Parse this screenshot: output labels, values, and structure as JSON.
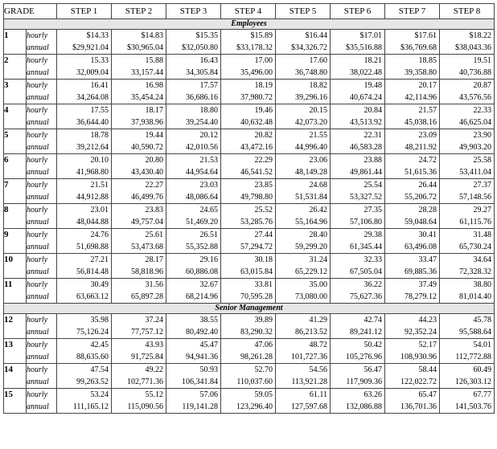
{
  "header": {
    "grade_label": "GRADE",
    "steps": [
      "STEP 1",
      "STEP 2",
      "STEP 3",
      "STEP 4",
      "STEP 5",
      "STEP 6",
      "STEP 7",
      "STEP 8"
    ]
  },
  "row_labels": {
    "hourly": "hourly",
    "annual": "annual"
  },
  "sections": [
    {
      "title": "Employees",
      "grades": [
        {
          "grade": "1",
          "hourly": [
            "$14.33",
            "$14.83",
            "$15.35",
            "$15.89",
            "$16.44",
            "$17.01",
            "$17.61",
            "$18.22"
          ],
          "annual": [
            "$29,921.04",
            "$30,965.04",
            "$32,050.80",
            "$33,178.32",
            "$34,326.72",
            "$35,516.88",
            "$36,769.68",
            "$38,043.36"
          ]
        },
        {
          "grade": "2",
          "hourly": [
            "15.33",
            "15.88",
            "16.43",
            "17.00",
            "17.60",
            "18.21",
            "18.85",
            "19.51"
          ],
          "annual": [
            "32,009.04",
            "33,157.44",
            "34,305.84",
            "35,496.00",
            "36,748.80",
            "38,022.48",
            "39,358.80",
            "40,736.88"
          ]
        },
        {
          "grade": "3",
          "hourly": [
            "16.41",
            "16.98",
            "17.57",
            "18.19",
            "18.82",
            "19.48",
            "20.17",
            "20.87"
          ],
          "annual": [
            "34,264.08",
            "35,454.24",
            "36,686.16",
            "37,980.72",
            "39,296.16",
            "40,674.24",
            "42,114.96",
            "43,576.56"
          ]
        },
        {
          "grade": "4",
          "hourly": [
            "17.55",
            "18.17",
            "18.80",
            "19.46",
            "20.15",
            "20.84",
            "21.57",
            "22.33"
          ],
          "annual": [
            "36,644.40",
            "37,938.96",
            "39,254.40",
            "40,632.48",
            "42,073.20",
            "43,513.92",
            "45,038.16",
            "46,625.04"
          ]
        },
        {
          "grade": "5",
          "hourly": [
            "18.78",
            "19.44",
            "20.12",
            "20.82",
            "21.55",
            "22.31",
            "23.09",
            "23.90"
          ],
          "annual": [
            "39,212.64",
            "40,590.72",
            "42,010.56",
            "43,472.16",
            "44,996.40",
            "46,583.28",
            "48,211.92",
            "49,903.20"
          ]
        },
        {
          "grade": "6",
          "hourly": [
            "20.10",
            "20.80",
            "21.53",
            "22.29",
            "23.06",
            "23.88",
            "24.72",
            "25.58"
          ],
          "annual": [
            "41,968.80",
            "43,430.40",
            "44,954.64",
            "46,541.52",
            "48,149.28",
            "49,861.44",
            "51,615.36",
            "53,411.04"
          ]
        },
        {
          "grade": "7",
          "hourly": [
            "21.51",
            "22.27",
            "23.03",
            "23.85",
            "24.68",
            "25.54",
            "26.44",
            "27.37"
          ],
          "annual": [
            "44,912.88",
            "46,499.76",
            "48,086.64",
            "49,798.80",
            "51,531.84",
            "53,327.52",
            "55,206.72",
            "57,148.56"
          ]
        },
        {
          "grade": "8",
          "hourly": [
            "23.01",
            "23.83",
            "24.65",
            "25.52",
            "26.42",
            "27.35",
            "28.28",
            "29.27"
          ],
          "annual": [
            "48,044.88",
            "49,757.04",
            "51,469.20",
            "53,285.76",
            "55,164.96",
            "57,106.80",
            "59,048.64",
            "61,115.76"
          ]
        },
        {
          "grade": "9",
          "hourly": [
            "24.76",
            "25.61",
            "26.51",
            "27.44",
            "28.40",
            "29.38",
            "30.41",
            "31.48"
          ],
          "annual": [
            "51,698.88",
            "53,473.68",
            "55,352.88",
            "57,294.72",
            "59,299.20",
            "61,345.44",
            "63,496.08",
            "65,730.24"
          ]
        },
        {
          "grade": "10",
          "hourly": [
            "27.21",
            "28.17",
            "29.16",
            "30.18",
            "31.24",
            "32.33",
            "33.47",
            "34.64"
          ],
          "annual": [
            "56,814.48",
            "58,818.96",
            "60,886.08",
            "63,015.84",
            "65,229.12",
            "67,505.04",
            "69,885.36",
            "72,328.32"
          ]
        },
        {
          "grade": "11",
          "hourly": [
            "30.49",
            "31.56",
            "32.67",
            "33.81",
            "35.00",
            "36.22",
            "37.49",
            "38.80"
          ],
          "annual": [
            "63,663.12",
            "65,897.28",
            "68,214.96",
            "70,595.28",
            "73,080.00",
            "75,627.36",
            "78,279.12",
            "81,014.40"
          ]
        }
      ]
    },
    {
      "title": "Senior Management",
      "grades": [
        {
          "grade": "12",
          "hourly": [
            "35.98",
            "37.24",
            "38.55",
            "39.89",
            "41.29",
            "42.74",
            "44.23",
            "45.78"
          ],
          "annual": [
            "75,126.24",
            "77,757.12",
            "80,492.40",
            "83,290.32",
            "86,213.52",
            "89,241.12",
            "92,352.24",
            "95,588.64"
          ]
        },
        {
          "grade": "13",
          "hourly": [
            "42.45",
            "43.93",
            "45.47",
            "47.06",
            "48.72",
            "50.42",
            "52.17",
            "54.01"
          ],
          "annual": [
            "88,635.60",
            "91,725.84",
            "94,941.36",
            "98,261.28",
            "101,727.36",
            "105,276.96",
            "108,930.96",
            "112,772.88"
          ]
        },
        {
          "grade": "14",
          "hourly": [
            "47.54",
            "49.22",
            "50.93",
            "52.70",
            "54.56",
            "56.47",
            "58.44",
            "60.49"
          ],
          "annual": [
            "99,263.52",
            "102,771.36",
            "106,341.84",
            "110,037.60",
            "113,921.28",
            "117,909.36",
            "122,022.72",
            "126,303.12"
          ]
        },
        {
          "grade": "15",
          "hourly": [
            "53.24",
            "55.12",
            "57.06",
            "59.05",
            "61.11",
            "63.26",
            "65.47",
            "67.77"
          ],
          "annual": [
            "111,165.12",
            "115,090.56",
            "119,141.28",
            "123,296.40",
            "127,597.68",
            "132,086.88",
            "136,701.36",
            "141,503.76"
          ]
        }
      ]
    }
  ]
}
